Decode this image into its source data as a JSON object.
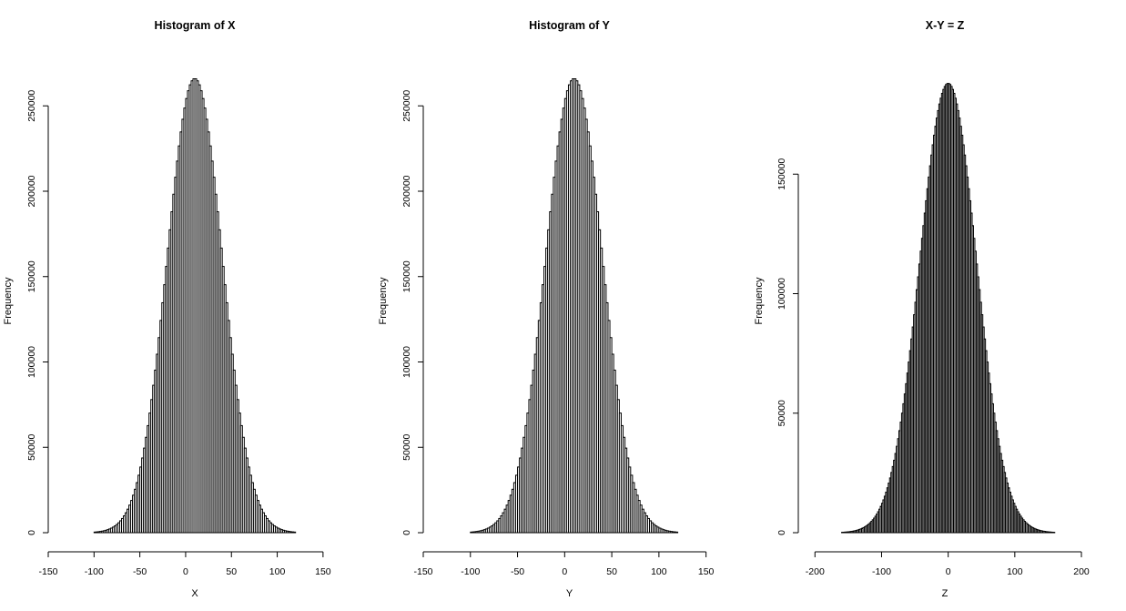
{
  "chart_data": [
    {
      "type": "bar",
      "title": "Histogram of X",
      "xlabel": "X",
      "ylabel": "Frequency",
      "xlim": [
        -150,
        170
      ],
      "ylim": [
        0,
        280000
      ],
      "x_ticks": [
        -150,
        -100,
        -50,
        0,
        50,
        100,
        150
      ],
      "y_ticks": [
        0,
        50000,
        100000,
        150000,
        200000,
        250000
      ],
      "bin_width": 2,
      "bins": [
        -100,
        120
      ],
      "distribution": {
        "mean": 10,
        "sd": 30,
        "peak": 266000
      },
      "grid": false
    },
    {
      "type": "bar",
      "title": "Histogram of Y",
      "xlabel": "Y",
      "ylabel": "Frequency",
      "xlim": [
        -150,
        160
      ],
      "ylim": [
        0,
        280000
      ],
      "x_ticks": [
        -150,
        -100,
        -50,
        0,
        50,
        100,
        150
      ],
      "y_ticks": [
        0,
        50000,
        100000,
        150000,
        200000,
        250000
      ],
      "bin_width": 2,
      "bins": [
        -100,
        120
      ],
      "distribution": {
        "mean": 10,
        "sd": 30,
        "peak": 266000
      },
      "grid": false
    },
    {
      "type": "bar",
      "title": "X-Y = Z",
      "xlabel": "Z",
      "ylabel": "Frequency",
      "xlim": [
        -225,
        215
      ],
      "ylim": [
        0,
        200000
      ],
      "x_ticks": [
        -200,
        -100,
        0,
        100,
        200
      ],
      "y_ticks": [
        0,
        50000,
        100000,
        150000
      ],
      "bin_width": 2,
      "bins": [
        -160,
        160
      ],
      "distribution": {
        "mean": 0,
        "sd": 42.4,
        "peak": 188000
      },
      "grid": false
    }
  ]
}
